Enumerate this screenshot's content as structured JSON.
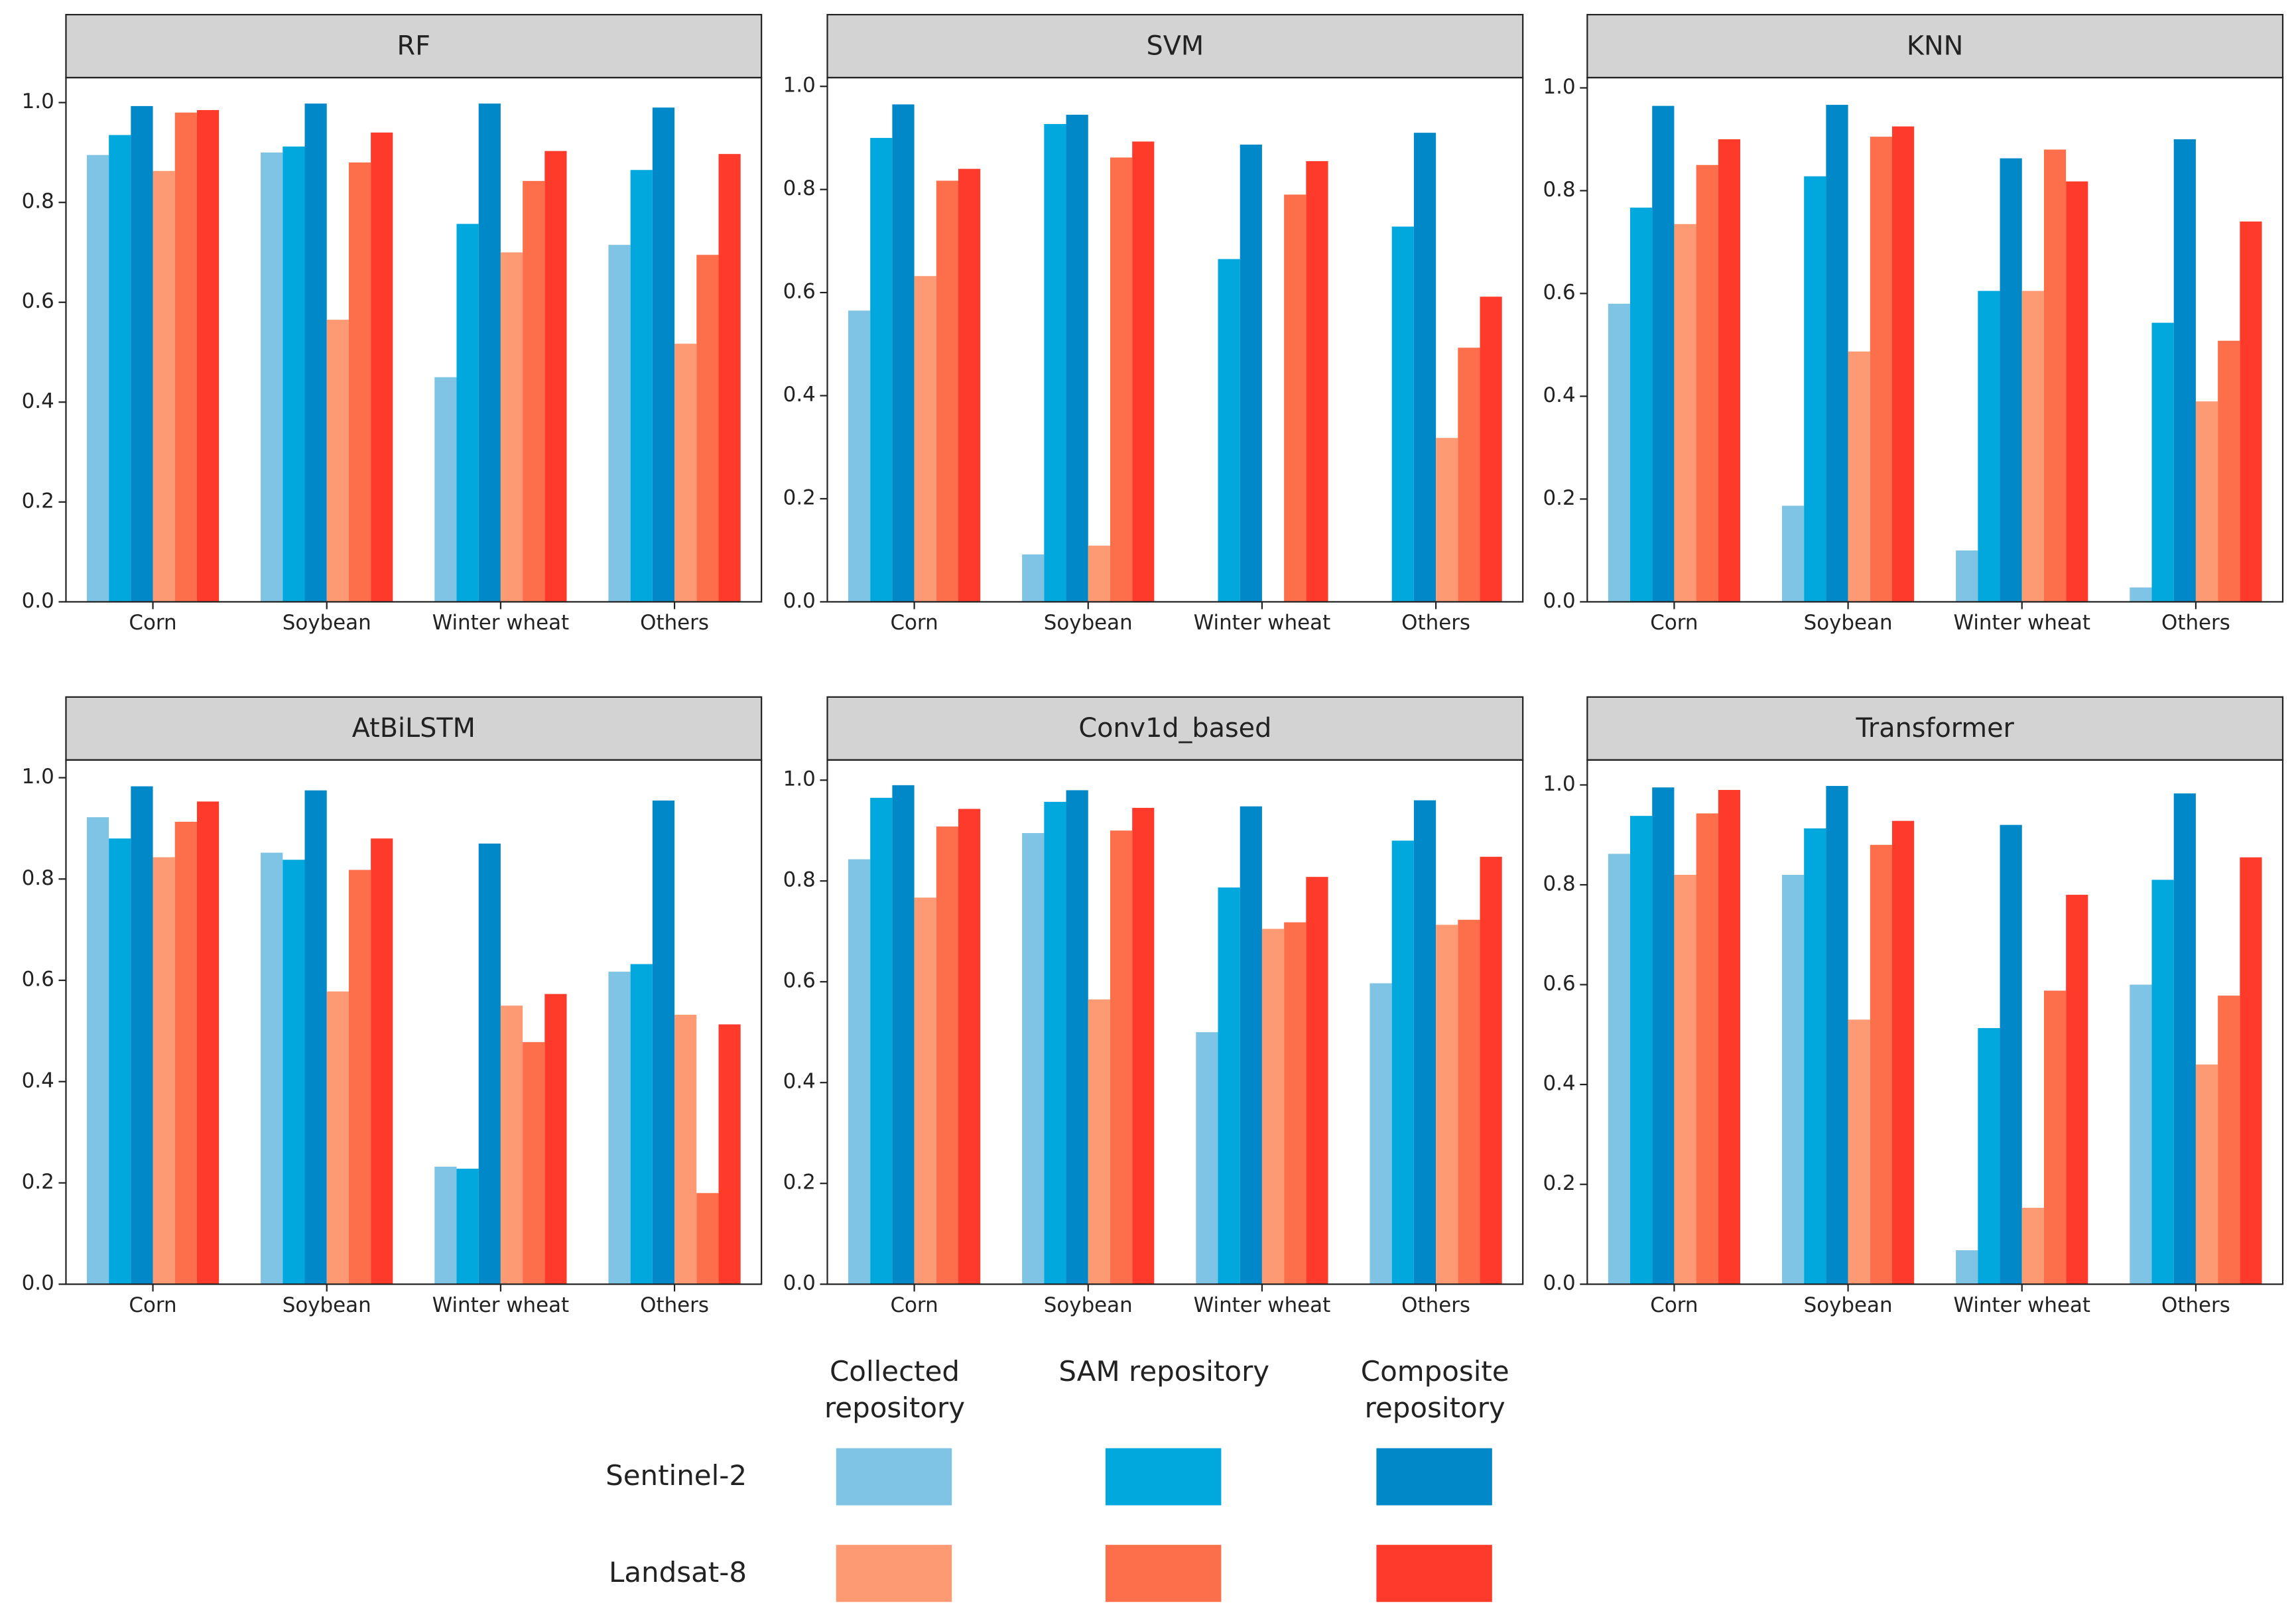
{
  "chart_data": [
    {
      "type": "bar",
      "title": "RF",
      "categories": [
        "Corn",
        "Soybean",
        "Winter wheat",
        "Others"
      ],
      "series": [
        {
          "values": [
            0.895,
            0.9,
            0.45,
            0.715
          ]
        },
        {
          "values": [
            0.935,
            0.912,
            0.757,
            0.865
          ]
        },
        {
          "values": [
            0.993,
            0.998,
            0.998,
            0.99
          ]
        },
        {
          "values": [
            0.863,
            0.565,
            0.7,
            0.517
          ]
        },
        {
          "values": [
            0.98,
            0.88,
            0.843,
            0.695
          ]
        },
        {
          "values": [
            0.985,
            0.94,
            0.903,
            0.897
          ]
        }
      ],
      "ylim": [
        0,
        1.05
      ],
      "yticks": [
        {
          "value": 0,
          "label": "0.0"
        },
        0.2,
        0.4,
        0.6,
        0.8,
        {
          "value": 1,
          "label": "1.0"
        }
      ]
    },
    {
      "type": "bar",
      "title": "SVM",
      "categories": [
        "Corn",
        "Soybean",
        "Winter wheat",
        "Others"
      ],
      "series": [
        {
          "values": [
            0.565,
            0.092,
            0,
            0
          ]
        },
        {
          "values": [
            0.9,
            0.927,
            0.665,
            0.728
          ]
        },
        {
          "values": [
            0.965,
            0.945,
            0.887,
            0.91
          ]
        },
        {
          "values": [
            0.632,
            0.109,
            0,
            0.318
          ]
        },
        {
          "values": [
            0.817,
            0.862,
            0.79,
            0.493
          ]
        },
        {
          "values": [
            0.84,
            0.893,
            0.855,
            0.592
          ]
        }
      ],
      "ylim": [
        0,
        1.017
      ],
      "yticks": [
        {
          "value": 0,
          "label": "0.0"
        },
        0.2,
        0.4,
        0.6,
        0.8,
        {
          "value": 1,
          "label": "1.0"
        }
      ]
    },
    {
      "type": "bar",
      "title": "KNN",
      "categories": [
        "Corn",
        "Soybean",
        "Winter wheat",
        "Others"
      ],
      "series": [
        {
          "values": [
            0.58,
            0.187,
            0.1,
            0.028
          ]
        },
        {
          "values": [
            0.767,
            0.828,
            0.605,
            0.543
          ]
        },
        {
          "values": [
            0.965,
            0.967,
            0.863,
            0.9
          ]
        },
        {
          "values": [
            0.735,
            0.487,
            0.605,
            0.39
          ]
        },
        {
          "values": [
            0.85,
            0.905,
            0.88,
            0.508
          ]
        },
        {
          "values": [
            0.9,
            0.925,
            0.818,
            0.74
          ]
        }
      ],
      "ylim": [
        0,
        1.02
      ],
      "yticks": [
        {
          "value": 0,
          "label": "0.0"
        },
        0.2,
        0.4,
        0.6,
        0.8,
        {
          "value": 1,
          "label": "1.0"
        }
      ]
    },
    {
      "type": "bar",
      "title": "AtBiLSTM",
      "categories": [
        "Corn",
        "Soybean",
        "Winter wheat",
        "Others"
      ],
      "series": [
        {
          "values": [
            0.922,
            0.852,
            0.232,
            0.617
          ]
        },
        {
          "values": [
            0.88,
            0.838,
            0.228,
            0.632
          ]
        },
        {
          "values": [
            0.983,
            0.975,
            0.87,
            0.955
          ]
        },
        {
          "values": [
            0.843,
            0.578,
            0.55,
            0.532
          ]
        },
        {
          "values": [
            0.913,
            0.818,
            0.478,
            0.18
          ]
        },
        {
          "values": [
            0.953,
            0.88,
            0.573,
            0.513
          ]
        }
      ],
      "ylim": [
        0,
        1.035
      ],
      "yticks": [
        {
          "value": 0,
          "label": "0.0"
        },
        0.2,
        0.4,
        0.6,
        0.8,
        {
          "value": 1,
          "label": "1.0"
        }
      ]
    },
    {
      "type": "bar",
      "title": "Conv1d_based",
      "categories": [
        "Corn",
        "Soybean",
        "Winter wheat",
        "Others"
      ],
      "series": [
        {
          "values": [
            0.843,
            0.895,
            0.5,
            0.597
          ]
        },
        {
          "values": [
            0.965,
            0.957,
            0.787,
            0.88
          ]
        },
        {
          "values": [
            0.99,
            0.98,
            0.948,
            0.96
          ]
        },
        {
          "values": [
            0.767,
            0.565,
            0.705,
            0.713
          ]
        },
        {
          "values": [
            0.908,
            0.9,
            0.718,
            0.723
          ]
        },
        {
          "values": [
            0.943,
            0.945,
            0.808,
            0.848
          ]
        }
      ],
      "ylim": [
        0,
        1.04
      ],
      "yticks": [
        {
          "value": 0,
          "label": "0.0"
        },
        0.2,
        0.4,
        0.6,
        0.8,
        {
          "value": 1,
          "label": "1.0"
        }
      ]
    },
    {
      "type": "bar",
      "title": "Transformer",
      "categories": [
        "Corn",
        "Soybean",
        "Winter wheat",
        "Others"
      ],
      "series": [
        {
          "values": [
            0.862,
            0.82,
            0.068,
            0.6
          ]
        },
        {
          "values": [
            0.938,
            0.913,
            0.513,
            0.81
          ]
        },
        {
          "values": [
            0.995,
            0.998,
            0.92,
            0.983
          ]
        },
        {
          "values": [
            0.82,
            0.53,
            0.153,
            0.44
          ]
        },
        {
          "values": [
            0.943,
            0.88,
            0.588,
            0.578
          ]
        },
        {
          "values": [
            0.99,
            0.928,
            0.78,
            0.855
          ]
        }
      ],
      "ylim": [
        0,
        1.05
      ],
      "yticks": [
        {
          "value": 0,
          "label": "0.0"
        },
        0.2,
        0.4,
        0.6,
        0.8,
        {
          "value": 1,
          "label": "1.0"
        }
      ]
    }
  ],
  "legend": {
    "columns": [
      "Collected repository",
      "SAM repository",
      "Composite repository"
    ],
    "rows": [
      "Sentinel-2",
      "Landsat-8"
    ],
    "colors": [
      [
        "#7fc4e4",
        "#00a8dd",
        "#0088c8"
      ],
      [
        "#fd9a74",
        "#fd6f4b",
        "#fe3a2a"
      ]
    ]
  }
}
